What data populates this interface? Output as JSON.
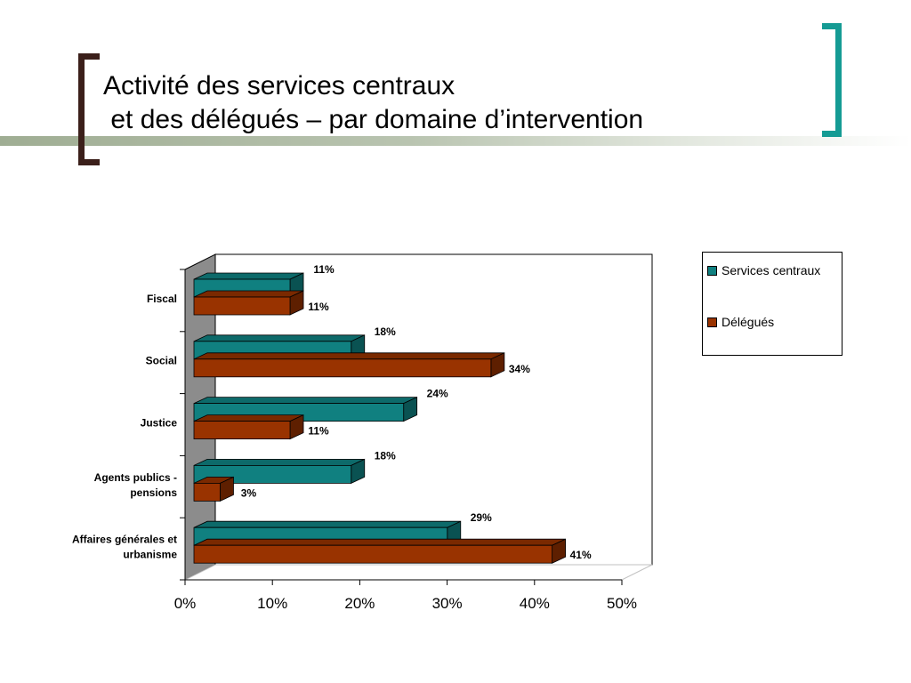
{
  "slide": {
    "title": "Activité des services centraux\n et des délégués – par domaine d’intervention"
  },
  "chart_data": {
    "type": "bar",
    "orientation": "horizontal",
    "categories": [
      "Fiscal",
      "Social",
      "Justice",
      "Agents publics - pensions",
      "Affaires générales et urbanisme"
    ],
    "category_lines": [
      [
        "Fiscal"
      ],
      [
        "Social"
      ],
      [
        "Justice"
      ],
      [
        "Agents publics -",
        "pensions"
      ],
      [
        "Affaires générales et",
        "urbanisme"
      ]
    ],
    "series": [
      {
        "name": "Services centraux",
        "values": [
          11,
          18,
          24,
          18,
          29
        ],
        "labels": [
          "11%",
          "18%",
          "24%",
          "18%",
          "29%"
        ],
        "color": "#108080",
        "color_side": "#0a5252",
        "color_top": "#0d6a6a"
      },
      {
        "name": "Délégués",
        "values": [
          11,
          34,
          11,
          3,
          41
        ],
        "labels": [
          "11%",
          "34%",
          "11%",
          "3%",
          "41%"
        ],
        "color": "#993300",
        "color_side": "#5e1f00",
        "color_top": "#7a2900"
      }
    ],
    "x_ticks": [
      "0%",
      "10%",
      "20%",
      "30%",
      "40%",
      "50%"
    ],
    "xlim": [
      0,
      50
    ],
    "legend_position": "right",
    "three_d": true,
    "grid": false
  }
}
